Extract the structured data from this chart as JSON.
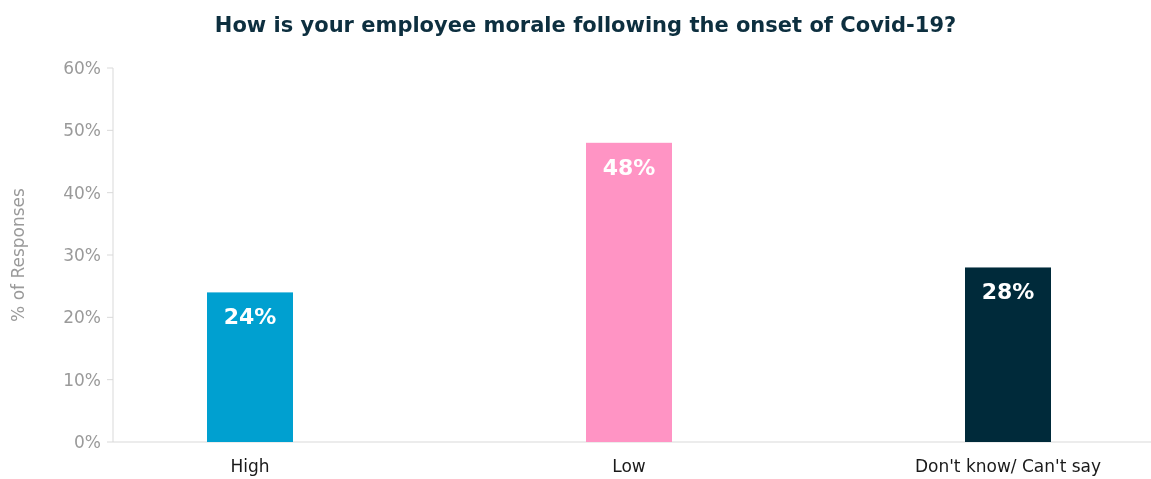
{
  "chart_data": {
    "type": "bar",
    "title": "How is your employee morale following the onset of Covid-19?",
    "ylabel": "% of Responses",
    "categories": [
      "High",
      "Low",
      "Don't know/ Can't say"
    ],
    "values": [
      24,
      48,
      28
    ],
    "colors": [
      "#00a0d0",
      "#ff94c4",
      "#002a3a"
    ],
    "ylim": [
      0,
      60
    ],
    "yticks": [
      {
        "value": 0,
        "label": "0%"
      },
      {
        "value": 10,
        "label": "10%"
      },
      {
        "value": 20,
        "label": "20%"
      },
      {
        "value": 30,
        "label": "30%"
      },
      {
        "value": 40,
        "label": "40%"
      },
      {
        "value": 50,
        "label": "50%"
      },
      {
        "value": 60,
        "label": "60%"
      }
    ],
    "value_labels": [
      "24%",
      "48%",
      "28%"
    ],
    "grid": false
  }
}
